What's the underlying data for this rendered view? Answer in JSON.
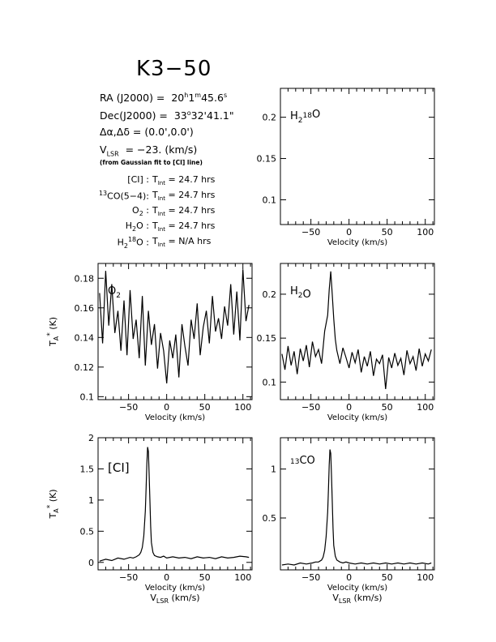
{
  "page": {
    "title": "K3−50",
    "info": {
      "ra": "RA (J2000) = 20h1m45.6s",
      "dec": "Dec(J2000) = 33°32'41.1\"",
      "offset": "Δα,Δδ = (0.0',0.0')",
      "vlsr": "VLSR = −23. (km/s)",
      "vlsr_note": "(from Gaussian fit to [CI] line)",
      "int_times": [
        {
          "line": "[CI] :",
          "value": "TInt = 24.7 hrs"
        },
        {
          "line": "13CO(5−4):",
          "value": "TInt = 24.7 hrs"
        },
        {
          "line": "O2 :",
          "value": "TInt = 24.7 hrs"
        },
        {
          "line": "H2O :",
          "value": "TInt = 24.7 hrs"
        },
        {
          "line": "H218O :",
          "value": "TInt = N/A hrs"
        }
      ]
    }
  },
  "chart_data": [
    {
      "type": "line",
      "panel": "H218O",
      "label": "H218O",
      "xlabel": "Velocity (km/s)",
      "ylabel": "",
      "xlim": [
        -90,
        112
      ],
      "ylim": [
        0.07,
        0.235
      ],
      "xticks": [
        -50,
        0,
        50,
        100
      ],
      "yticks": [
        0.1,
        0.15,
        0.2
      ],
      "x": [],
      "y": []
    },
    {
      "type": "line",
      "panel": "O2",
      "label": "O2",
      "xlabel": "Velocity (km/s)",
      "ylabel": "TA* (K)",
      "xlim": [
        -90,
        112
      ],
      "ylim": [
        0.098,
        0.19
      ],
      "xticks": [
        -50,
        0,
        50,
        100
      ],
      "yticks": [
        0.1,
        0.12,
        0.14,
        0.16,
        0.18
      ],
      "x": [
        -88,
        -84,
        -80,
        -76,
        -72,
        -68,
        -64,
        -60,
        -56,
        -52,
        -48,
        -44,
        -40,
        -36,
        -32,
        -28,
        -24,
        -20,
        -16,
        -12,
        -8,
        -4,
        0,
        4,
        8,
        12,
        16,
        20,
        24,
        28,
        32,
        36,
        40,
        44,
        48,
        52,
        56,
        60,
        64,
        68,
        72,
        76,
        80,
        84,
        88,
        92,
        96,
        100,
        104,
        108
      ],
      "y": [
        0.17,
        0.136,
        0.185,
        0.148,
        0.176,
        0.143,
        0.158,
        0.131,
        0.165,
        0.128,
        0.172,
        0.139,
        0.152,
        0.126,
        0.168,
        0.121,
        0.158,
        0.135,
        0.149,
        0.119,
        0.143,
        0.131,
        0.109,
        0.138,
        0.126,
        0.142,
        0.113,
        0.149,
        0.134,
        0.121,
        0.152,
        0.139,
        0.163,
        0.128,
        0.147,
        0.158,
        0.136,
        0.168,
        0.144,
        0.153,
        0.139,
        0.161,
        0.148,
        0.176,
        0.142,
        0.171,
        0.138,
        0.186,
        0.151,
        0.162
      ]
    },
    {
      "type": "line",
      "panel": "H2O",
      "label": "H2O",
      "xlabel": "Velocity (km/s)",
      "ylabel": "",
      "xlim": [
        -90,
        112
      ],
      "ylim": [
        0.08,
        0.235
      ],
      "xticks": [
        -50,
        0,
        50,
        100
      ],
      "yticks": [
        0.1,
        0.15,
        0.2
      ],
      "x": [
        -88,
        -84,
        -80,
        -76,
        -72,
        -68,
        -64,
        -60,
        -56,
        -52,
        -48,
        -44,
        -40,
        -36,
        -32,
        -28,
        -26,
        -24,
        -22,
        -20,
        -18,
        -16,
        -12,
        -8,
        -4,
        0,
        4,
        8,
        12,
        16,
        20,
        24,
        28,
        32,
        36,
        40,
        44,
        48,
        52,
        56,
        60,
        64,
        68,
        72,
        76,
        80,
        84,
        88,
        92,
        96,
        100,
        104,
        108
      ],
      "y": [
        0.132,
        0.114,
        0.141,
        0.119,
        0.135,
        0.109,
        0.138,
        0.124,
        0.142,
        0.117,
        0.146,
        0.129,
        0.137,
        0.121,
        0.158,
        0.176,
        0.205,
        0.226,
        0.199,
        0.172,
        0.149,
        0.136,
        0.121,
        0.139,
        0.128,
        0.116,
        0.134,
        0.122,
        0.137,
        0.111,
        0.129,
        0.118,
        0.135,
        0.107,
        0.126,
        0.121,
        0.131,
        0.092,
        0.128,
        0.116,
        0.133,
        0.119,
        0.127,
        0.108,
        0.136,
        0.121,
        0.129,
        0.113,
        0.138,
        0.118,
        0.132,
        0.124,
        0.137
      ]
    },
    {
      "type": "line",
      "panel": "CI",
      "label": "[CI]",
      "xlabel": "Velocity (km/s)",
      "xlabel2": "VLSR (km/s)",
      "ylabel": "TA* (K)",
      "xlim": [
        -90,
        112
      ],
      "ylim": [
        -0.12,
        2.0
      ],
      "xticks": [
        -50,
        0,
        50,
        100
      ],
      "yticks": [
        0,
        0.5,
        1,
        1.5,
        2
      ],
      "x": [
        -88,
        -80,
        -72,
        -64,
        -56,
        -48,
        -44,
        -40,
        -36,
        -34,
        -32,
        -30,
        -28,
        -27,
        -26,
        -25,
        -24,
        -23,
        -22,
        -21,
        -20,
        -18,
        -16,
        -12,
        -8,
        -4,
        0,
        8,
        16,
        24,
        32,
        40,
        48,
        56,
        64,
        72,
        80,
        88,
        96,
        104,
        108
      ],
      "y": [
        0.02,
        0.05,
        0.03,
        0.07,
        0.05,
        0.08,
        0.07,
        0.09,
        0.12,
        0.16,
        0.24,
        0.42,
        0.82,
        1.2,
        1.58,
        1.85,
        1.78,
        1.42,
        0.98,
        0.58,
        0.32,
        0.16,
        0.11,
        0.09,
        0.08,
        0.1,
        0.07,
        0.09,
        0.07,
        0.08,
        0.06,
        0.09,
        0.07,
        0.08,
        0.06,
        0.09,
        0.07,
        0.08,
        0.1,
        0.09,
        0.08
      ]
    },
    {
      "type": "line",
      "panel": "13CO",
      "label": "13CO",
      "xlabel": "Velocity (km/s)",
      "xlabel2": "VLSR (km/s)",
      "ylabel": "",
      "xlim": [
        -90,
        112
      ],
      "ylim": [
        -0.03,
        1.32
      ],
      "xticks": [
        -50,
        0,
        50,
        100
      ],
      "yticks": [
        0.5,
        1
      ],
      "x": [
        -88,
        -80,
        -72,
        -64,
        -56,
        -48,
        -44,
        -40,
        -36,
        -34,
        -32,
        -30,
        -28,
        -27,
        -26,
        -25,
        -24,
        -23,
        -22,
        -21,
        -20,
        -18,
        -16,
        -12,
        -8,
        -4,
        0,
        8,
        16,
        24,
        32,
        40,
        48,
        56,
        64,
        72,
        80,
        88,
        96,
        104,
        108
      ],
      "y": [
        0.02,
        0.03,
        0.02,
        0.04,
        0.03,
        0.04,
        0.05,
        0.05,
        0.07,
        0.1,
        0.17,
        0.31,
        0.56,
        0.8,
        1.04,
        1.2,
        1.16,
        0.94,
        0.66,
        0.4,
        0.22,
        0.11,
        0.07,
        0.05,
        0.04,
        0.05,
        0.04,
        0.03,
        0.04,
        0.03,
        0.04,
        0.03,
        0.04,
        0.03,
        0.04,
        0.03,
        0.04,
        0.03,
        0.04,
        0.03,
        0.04
      ]
    }
  ]
}
